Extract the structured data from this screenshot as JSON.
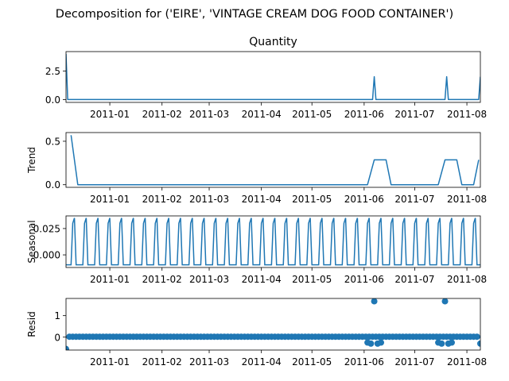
{
  "suptitle": "Decomposition for ('EIRE', 'VINTAGE CREAM DOG FOOD CONTAINER')",
  "colors": {
    "line": "#1f77b4",
    "axis": "#000000",
    "zero": "#000000"
  },
  "x_tick_labels": [
    "2011-01",
    "2011-02",
    "2011-03",
    "2011-04",
    "2011-05",
    "2011-06",
    "2011-07",
    "2011-08"
  ],
  "chart_data": [
    {
      "type": "line",
      "title": "Quantity",
      "ylabel": "",
      "x_range": [
        "2010-12-06",
        "2011-08-09"
      ],
      "ylim": [
        -0.25,
        4.2
      ],
      "yticks": [
        0.0,
        2.5
      ],
      "ytick_labels": [
        "0.0",
        "2.5"
      ],
      "x": [
        "2010-12-06",
        "2010-12-07",
        "2011-06-06",
        "2011-06-07",
        "2011-06-08",
        "2011-07-19",
        "2011-07-20",
        "2011-07-21",
        "2011-08-08",
        "2011-08-09"
      ],
      "values": [
        4,
        0,
        0,
        2,
        0,
        0,
        2,
        0,
        0,
        2
      ]
    },
    {
      "type": "line",
      "title": "",
      "ylabel": "Trend",
      "x_range": [
        "2010-12-06",
        "2011-08-09"
      ],
      "ylim": [
        -0.03,
        0.6
      ],
      "yticks": [
        0.0,
        0.5
      ],
      "ytick_labels": [
        "0.0",
        "0.5"
      ],
      "x": [
        "2010-12-09",
        "2010-12-13",
        "2011-06-03",
        "2011-06-07",
        "2011-06-14",
        "2011-06-17",
        "2011-07-15",
        "2011-07-19",
        "2011-07-26",
        "2011-07-29",
        "2011-08-05",
        "2011-08-08"
      ],
      "values": [
        0.57,
        0.0,
        0.0,
        0.286,
        0.286,
        0.0,
        0.0,
        0.286,
        0.286,
        0.0,
        0.0,
        0.286
      ]
    },
    {
      "type": "line",
      "title": "",
      "ylabel": "Seasonal",
      "x_range": [
        "2010-12-06",
        "2011-08-09"
      ],
      "ylim": [
        -0.012,
        0.037
      ],
      "yticks": [
        0.0,
        0.025
      ],
      "ytick_labels": [
        "0.000",
        "0.025"
      ],
      "period_days": 7,
      "period_start": "2010-12-06",
      "pattern": [
        -0.0095,
        -0.0095,
        -0.0095,
        -0.0095,
        0.03,
        0.035,
        -0.0095
      ]
    },
    {
      "type": "scatter",
      "title": "",
      "ylabel": "Resid",
      "x_range": [
        "2010-12-06",
        "2011-08-09"
      ],
      "ylim": [
        -0.6,
        1.8
      ],
      "yticks": [
        0,
        1
      ],
      "ytick_labels": [
        "0",
        "1"
      ],
      "baseline": 0,
      "point_spacing_days": 2,
      "default_value": 0.02,
      "outliers": [
        {
          "x": "2010-12-06",
          "y": -0.55
        },
        {
          "x": "2011-06-03",
          "y": -0.25
        },
        {
          "x": "2011-06-05",
          "y": -0.3
        },
        {
          "x": "2011-06-07",
          "y": 1.67
        },
        {
          "x": "2011-06-09",
          "y": -0.3
        },
        {
          "x": "2011-06-11",
          "y": -0.25
        },
        {
          "x": "2011-07-15",
          "y": -0.25
        },
        {
          "x": "2011-07-17",
          "y": -0.3
        },
        {
          "x": "2011-07-19",
          "y": 1.67
        },
        {
          "x": "2011-07-21",
          "y": -0.3
        },
        {
          "x": "2011-07-23",
          "y": -0.25
        },
        {
          "x": "2011-08-09",
          "y": -0.3
        }
      ]
    }
  ]
}
